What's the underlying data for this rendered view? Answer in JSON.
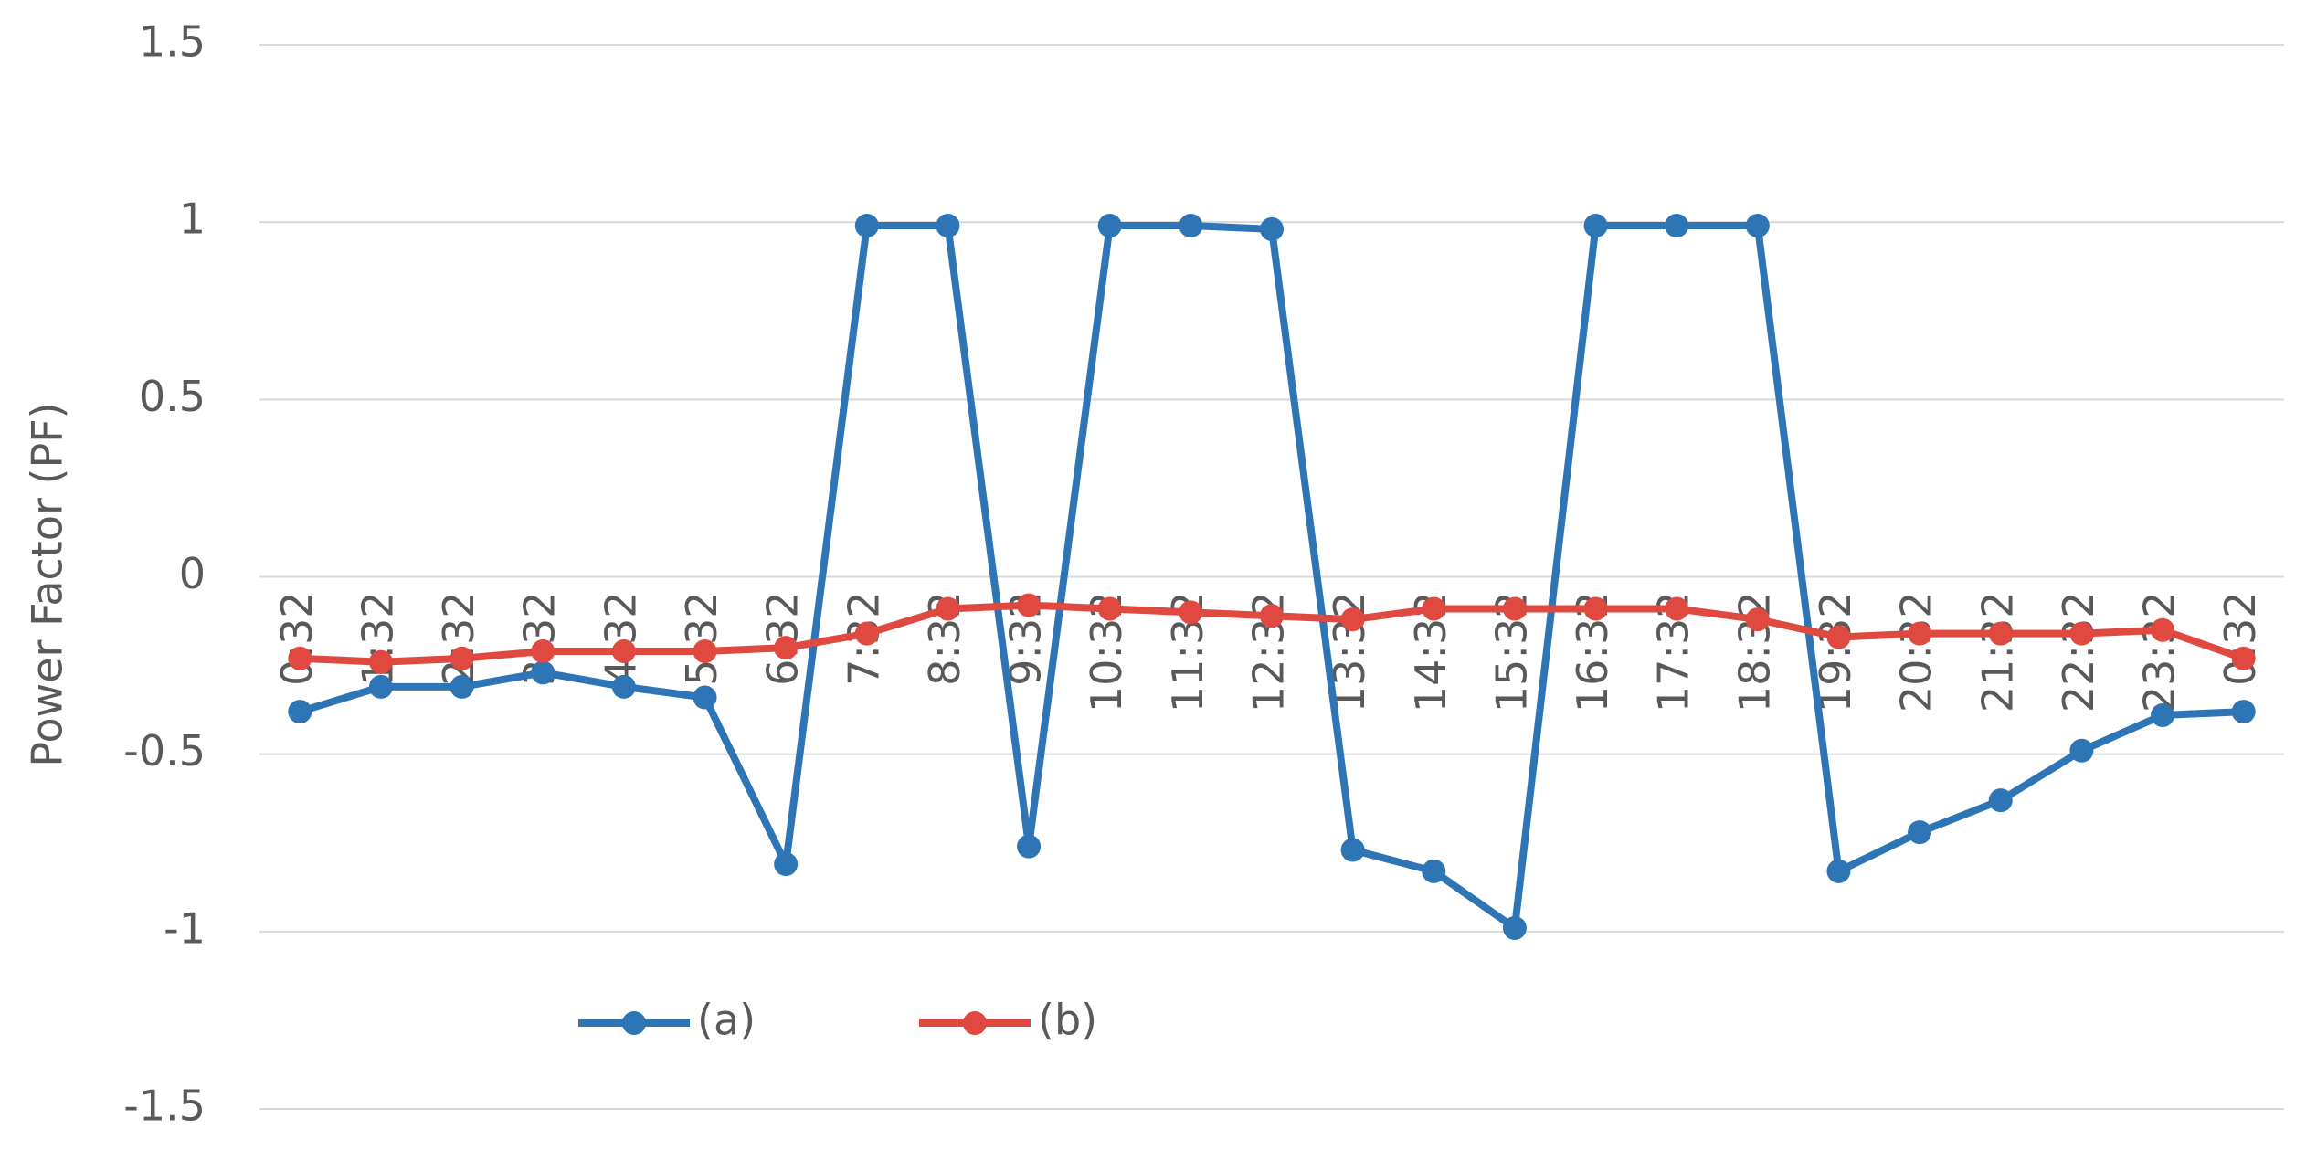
{
  "chart_data": {
    "type": "line",
    "y_label": "Power Factor (PF)",
    "categories": [
      "0:32",
      "1:32",
      "2:32",
      "3:32",
      "4:32",
      "5:32",
      "6:32",
      "7:32",
      "8:32",
      "9:32",
      "10:32",
      "11:32",
      "12:32",
      "13:32",
      "14:32",
      "15:32",
      "16:32",
      "17:32",
      "18:32",
      "19:32",
      "20:32",
      "21:32",
      "22:32",
      "23:32",
      "0:32"
    ],
    "series": [
      {
        "name": "(a)",
        "color": "#2e75b6",
        "values": [
          -0.38,
          -0.31,
          -0.31,
          -0.27,
          -0.31,
          -0.34,
          -0.81,
          0.99,
          0.99,
          -0.76,
          0.99,
          0.99,
          0.98,
          -0.77,
          -0.83,
          -0.99,
          0.99,
          0.99,
          0.99,
          -0.83,
          -0.72,
          -0.63,
          -0.49,
          -0.39,
          -0.38
        ]
      },
      {
        "name": "(b)",
        "color": "#e0493f",
        "values": [
          -0.23,
          -0.24,
          -0.23,
          -0.21,
          -0.21,
          -0.21,
          -0.2,
          -0.16,
          -0.09,
          -0.08,
          -0.09,
          -0.1,
          -0.11,
          -0.12,
          -0.09,
          -0.09,
          -0.09,
          -0.09,
          -0.12,
          -0.17,
          -0.16,
          -0.16,
          -0.16,
          -0.15,
          -0.23
        ]
      }
    ],
    "ylim": [
      -1.5,
      1.5
    ],
    "yticks": [
      -1.5,
      -1,
      -0.5,
      0,
      0.5,
      1,
      1.5
    ],
    "grid": true
  }
}
